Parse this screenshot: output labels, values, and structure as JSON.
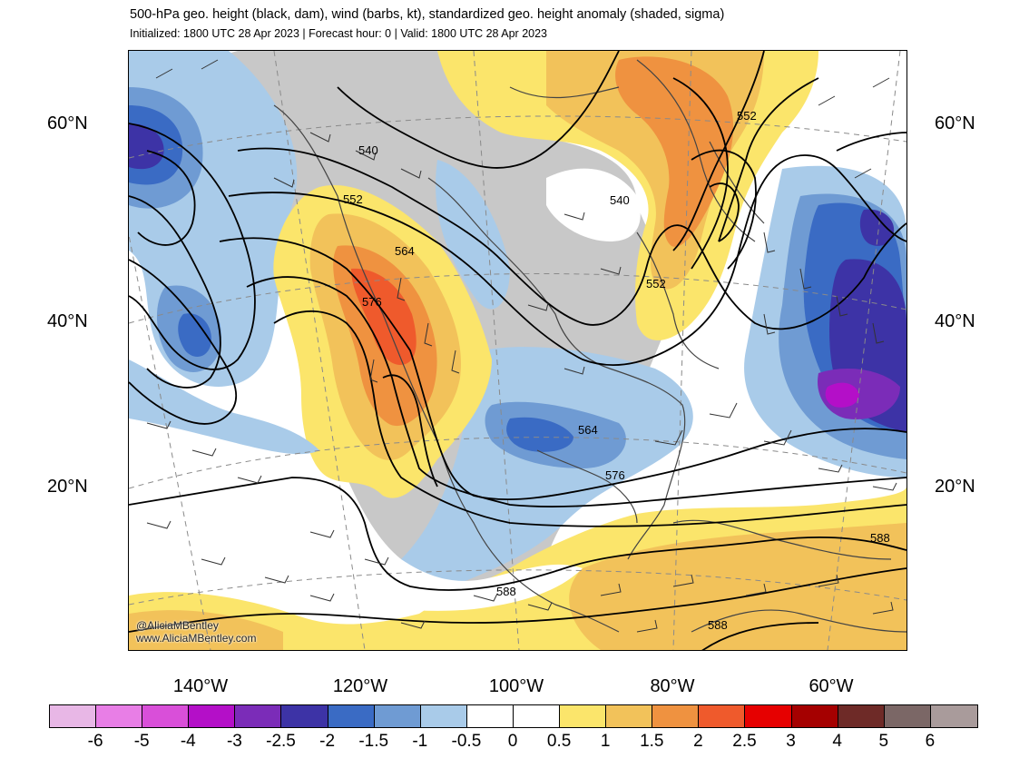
{
  "header": {
    "title": "500-hPa geo. height (black, dam), wind (barbs, kt), standardized geo. height anomaly (shaded, sigma)",
    "subtitle": "Initialized: 1800 UTC 28 Apr 2023 | Forecast hour: 0 | Valid: 1800 UTC 28 Apr 2023"
  },
  "axes": {
    "lat_left": [
      "60°N",
      "40°N",
      "20°N"
    ],
    "lat_right": [
      "60°N",
      "40°N",
      "20°N"
    ],
    "lon": [
      "140°W",
      "120°W",
      "100°W",
      "80°W",
      "60°W"
    ]
  },
  "contour_labels": [
    "540",
    "552",
    "564",
    "576",
    "540",
    "552",
    "552",
    "564",
    "576",
    "588",
    "588",
    "588"
  ],
  "credit": {
    "line1": "@AliciaMBentley",
    "line2": "www.AliciaMBentley.com"
  },
  "colorbar": {
    "colors": [
      "#e8b7e6",
      "#e87ee6",
      "#d94fd9",
      "#b40fc8",
      "#7b2cb8",
      "#3d33a6",
      "#3a6bc4",
      "#6f9bd3",
      "#a9cbe9",
      "#ffffff",
      "#ffffff",
      "#fbe56b",
      "#f2c25a",
      "#ef9240",
      "#ef5a2c",
      "#e60000",
      "#a50000",
      "#6e2a27",
      "#7b6766",
      "#a99b9b"
    ],
    "ticks": [
      "-6",
      "-5",
      "-4",
      "-3",
      "-2.5",
      "-2",
      "-1.5",
      "-1",
      "-0.5",
      "0",
      "0.5",
      "1",
      "1.5",
      "2",
      "2.5",
      "3",
      "4",
      "5",
      "6"
    ]
  }
}
